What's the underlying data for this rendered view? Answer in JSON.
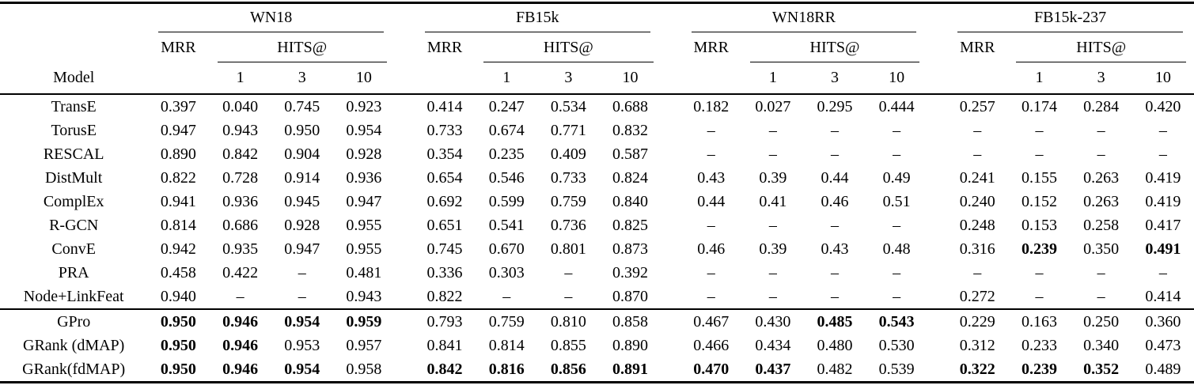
{
  "header": {
    "model_label": "Model",
    "mrr_label": "MRR",
    "hits_label": "HITS@",
    "hits_cols": [
      "1",
      "3",
      "10"
    ],
    "datasets": [
      "WN18",
      "FB15k",
      "WN18RR",
      "FB15k-237"
    ]
  },
  "table": {
    "column_order_note": "values order per row: WN18 [MRR,HITS@1,HITS@3,HITS@10], FB15k [MRR,1,3,10], WN18RR [MRR,1,3,10], FB15k-237 [MRR,1,3,10]",
    "baseline_rows": [
      {
        "model": "TransE",
        "values": [
          "0.397",
          "0.040",
          "0.745",
          "0.923",
          "0.414",
          "0.247",
          "0.534",
          "0.688",
          "0.182",
          "0.027",
          "0.295",
          "0.444",
          "0.257",
          "0.174",
          "0.284",
          "0.420"
        ],
        "bold": []
      },
      {
        "model": "TorusE",
        "values": [
          "0.947",
          "0.943",
          "0.950",
          "0.954",
          "0.733",
          "0.674",
          "0.771",
          "0.832",
          "–",
          "–",
          "–",
          "–",
          "–",
          "–",
          "–",
          "–"
        ],
        "bold": []
      },
      {
        "model": "RESCAL",
        "values": [
          "0.890",
          "0.842",
          "0.904",
          "0.928",
          "0.354",
          "0.235",
          "0.409",
          "0.587",
          "–",
          "–",
          "–",
          "–",
          "–",
          "–",
          "–",
          "–"
        ],
        "bold": []
      },
      {
        "model": "DistMult",
        "values": [
          "0.822",
          "0.728",
          "0.914",
          "0.936",
          "0.654",
          "0.546",
          "0.733",
          "0.824",
          "0.43",
          "0.39",
          "0.44",
          "0.49",
          "0.241",
          "0.155",
          "0.263",
          "0.419"
        ],
        "bold": []
      },
      {
        "model": "ComplEx",
        "values": [
          "0.941",
          "0.936",
          "0.945",
          "0.947",
          "0.692",
          "0.599",
          "0.759",
          "0.840",
          "0.44",
          "0.41",
          "0.46",
          "0.51",
          "0.240",
          "0.152",
          "0.263",
          "0.419"
        ],
        "bold": []
      },
      {
        "model": "R-GCN",
        "values": [
          "0.814",
          "0.686",
          "0.928",
          "0.955",
          "0.651",
          "0.541",
          "0.736",
          "0.825",
          "–",
          "–",
          "–",
          "–",
          "0.248",
          "0.153",
          "0.258",
          "0.417"
        ],
        "bold": []
      },
      {
        "model": "ConvE",
        "values": [
          "0.942",
          "0.935",
          "0.947",
          "0.955",
          "0.745",
          "0.670",
          "0.801",
          "0.873",
          "0.46",
          "0.39",
          "0.43",
          "0.48",
          "0.316",
          "0.239",
          "0.350",
          "0.491"
        ],
        "bold": [
          13,
          15
        ]
      },
      {
        "model": "PRA",
        "values": [
          "0.458",
          "0.422",
          "–",
          "0.481",
          "0.336",
          "0.303",
          "–",
          "0.392",
          "–",
          "–",
          "–",
          "–",
          "–",
          "–",
          "–",
          "–"
        ],
        "bold": []
      },
      {
        "model": "Node+LinkFeat",
        "values": [
          "0.940",
          "–",
          "–",
          "0.943",
          "0.822",
          "–",
          "–",
          "0.870",
          "–",
          "–",
          "–",
          "–",
          "0.272",
          "–",
          "–",
          "0.414"
        ],
        "bold": []
      }
    ],
    "proposed_rows": [
      {
        "model": "GPro",
        "values": [
          "0.950",
          "0.946",
          "0.954",
          "0.959",
          "0.793",
          "0.759",
          "0.810",
          "0.858",
          "0.467",
          "0.430",
          "0.485",
          "0.543",
          "0.229",
          "0.163",
          "0.250",
          "0.360"
        ],
        "bold": [
          0,
          1,
          2,
          3,
          10,
          11
        ]
      },
      {
        "model": "GRank (dMAP)",
        "values": [
          "0.950",
          "0.946",
          "0.953",
          "0.957",
          "0.841",
          "0.814",
          "0.855",
          "0.890",
          "0.466",
          "0.434",
          "0.480",
          "0.530",
          "0.312",
          "0.233",
          "0.340",
          "0.473"
        ],
        "bold": [
          0,
          1
        ]
      },
      {
        "model": "GRank(fdMAP)",
        "values": [
          "0.950",
          "0.946",
          "0.954",
          "0.958",
          "0.842",
          "0.816",
          "0.856",
          "0.891",
          "0.470",
          "0.437",
          "0.482",
          "0.539",
          "0.322",
          "0.239",
          "0.352",
          "0.489"
        ],
        "bold": [
          0,
          1,
          2,
          4,
          5,
          6,
          7,
          8,
          9,
          12,
          13,
          14
        ]
      }
    ]
  }
}
